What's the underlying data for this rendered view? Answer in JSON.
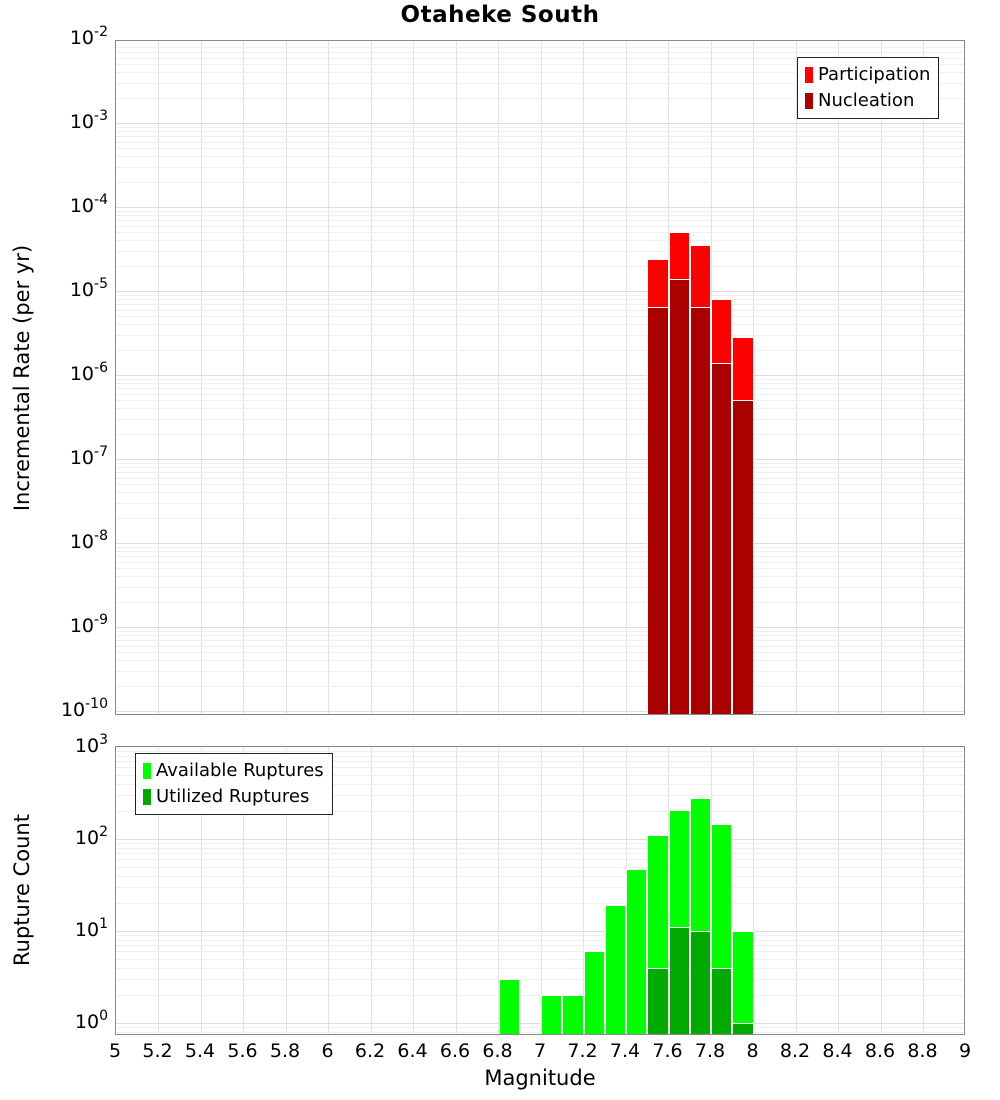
{
  "figure": {
    "title": "Otaheke South",
    "xlabel": "Magnitude",
    "y_tick_base": "10"
  },
  "chart_data": [
    {
      "type": "bar",
      "title": "Otaheke South",
      "ylabel": "Incremental Rate (per yr)",
      "xlabel": "Magnitude",
      "x_range": [
        5,
        9
      ],
      "x_tick_step": 0.2,
      "y_scale": "log",
      "ylim": [
        1e-10,
        0.01
      ],
      "y_tick_exponents": [
        "-2",
        "-3",
        "-4",
        "-5",
        "-6",
        "-7",
        "-8",
        "-9",
        "-10"
      ],
      "grid": true,
      "bin_width": 0.1,
      "legend_position": "top-right",
      "series": [
        {
          "name": "Participation",
          "color": "#ff0000",
          "bin_starts": [
            7.5,
            7.6,
            7.7,
            7.8,
            7.9
          ],
          "values": [
            2.4e-05,
            5e-05,
            3.5e-05,
            8e-06,
            2.8e-06
          ]
        },
        {
          "name": "Nucleation",
          "color": "#aa0000",
          "bin_starts": [
            7.5,
            7.6,
            7.7,
            7.8,
            7.9
          ],
          "values": [
            6.5e-06,
            1.4e-05,
            6.5e-06,
            1.4e-06,
            5e-07
          ]
        }
      ]
    },
    {
      "type": "bar",
      "ylabel": "Rupture Count",
      "xlabel": "Magnitude",
      "x_range": [
        5,
        9
      ],
      "x_tick_step": 0.2,
      "x_tick_labels": [
        "5",
        "5.2",
        "5.4",
        "5.6",
        "5.8",
        "6",
        "6.2",
        "6.4",
        "6.6",
        "6.8",
        "7",
        "7.2",
        "7.4",
        "7.6",
        "7.8",
        "8",
        "8.2",
        "8.4",
        "8.6",
        "8.8",
        "9"
      ],
      "y_scale": "log",
      "ylim": [
        1,
        1000
      ],
      "y_tick_exponents": [
        "3",
        "2",
        "1",
        "0"
      ],
      "grid": true,
      "bin_width": 0.1,
      "legend_position": "top-left",
      "series": [
        {
          "name": "Available Ruptures",
          "color": "#00ff00",
          "bin_starts": [
            6.8,
            7.0,
            7.1,
            7.2,
            7.3,
            7.4,
            7.5,
            7.6,
            7.7,
            7.8,
            7.9
          ],
          "values": [
            3,
            2,
            2,
            6,
            19,
            47,
            110,
            207,
            280,
            146,
            10
          ]
        },
        {
          "name": "Utilized Ruptures",
          "color": "#00aa00",
          "bin_starts": [
            7.5,
            7.6,
            7.7,
            7.8,
            7.9
          ],
          "values": [
            4,
            11,
            10,
            4,
            1
          ]
        }
      ]
    }
  ]
}
